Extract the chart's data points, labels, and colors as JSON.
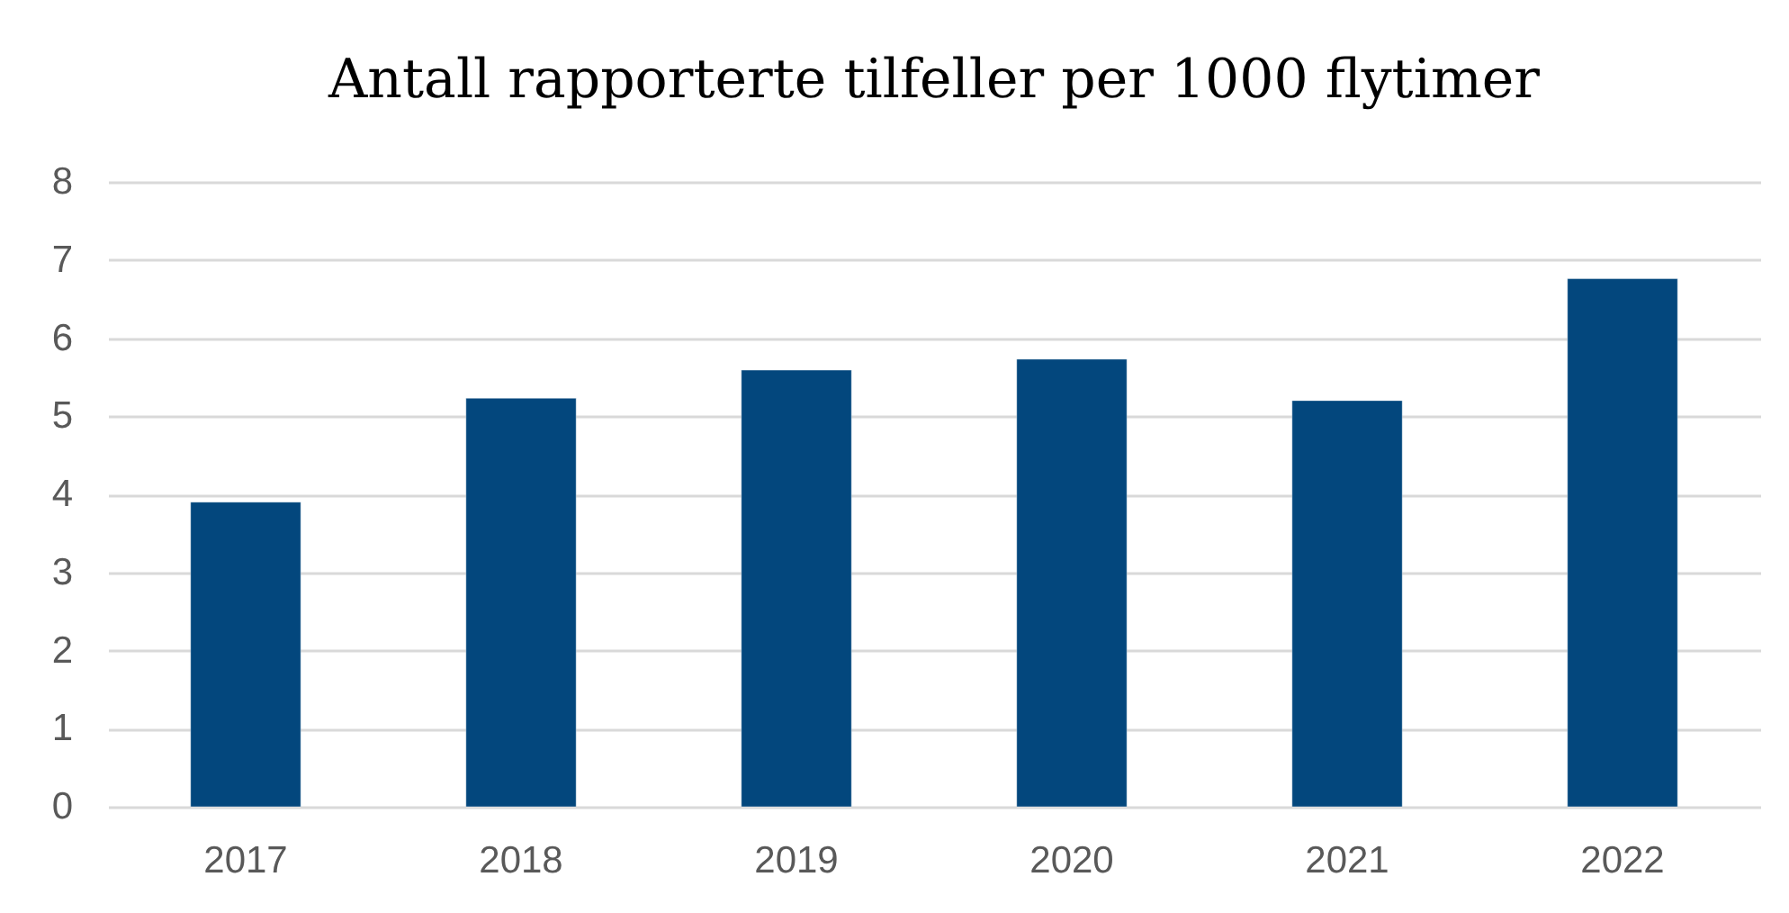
{
  "chart_data": {
    "type": "bar",
    "title": "Antall rapporterte tilfeller per 1000 flytimer",
    "categories": [
      "2017",
      "2018",
      "2019",
      "2020",
      "2021",
      "2022"
    ],
    "values": [
      3.9,
      5.23,
      5.59,
      5.73,
      5.2,
      6.76
    ],
    "color": "#03477d",
    "ylim": [
      0,
      8
    ],
    "yticks": [
      0,
      1,
      2,
      3,
      4,
      5,
      6,
      7,
      8
    ],
    "grid": "y"
  }
}
